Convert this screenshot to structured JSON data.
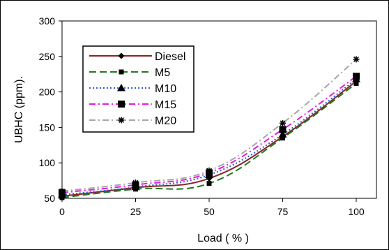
{
  "chart_data": {
    "type": "line",
    "title": "",
    "xlabel": "Load ( % )",
    "ylabel": "UBHC (ppm).",
    "x": [
      0,
      25,
      50,
      75,
      100
    ],
    "xticks": [
      "0",
      "25",
      "50",
      "75",
      "100"
    ],
    "yticks": [
      "50",
      "100",
      "150",
      "200",
      "250",
      "300"
    ],
    "xlim": [
      0,
      100
    ],
    "ylim": [
      50,
      300
    ],
    "grid": false,
    "legend_position": "top-left",
    "series": [
      {
        "name": "Diesel",
        "values": [
          53,
          65,
          78,
          137,
          215
        ],
        "color": "#8b2323",
        "dash": "solid",
        "marker": "diamond"
      },
      {
        "name": "M5",
        "values": [
          51,
          63,
          71,
          135,
          212
        ],
        "color": "#1f7a1f",
        "dash": "long-dash",
        "marker": "small-square"
      },
      {
        "name": "M10",
        "values": [
          55,
          66,
          83,
          140,
          218
        ],
        "color": "#2e5bd6",
        "dash": "dotted",
        "marker": "triangle"
      },
      {
        "name": "M15",
        "values": [
          58,
          69,
          86,
          147,
          222
        ],
        "color": "#e619e6",
        "dash": "dash-dot",
        "marker": "square"
      },
      {
        "name": "M20",
        "values": [
          60,
          72,
          89,
          156,
          246
        ],
        "color": "#a6a6a6",
        "dash": "dash-dot",
        "marker": "asterisk"
      }
    ]
  }
}
